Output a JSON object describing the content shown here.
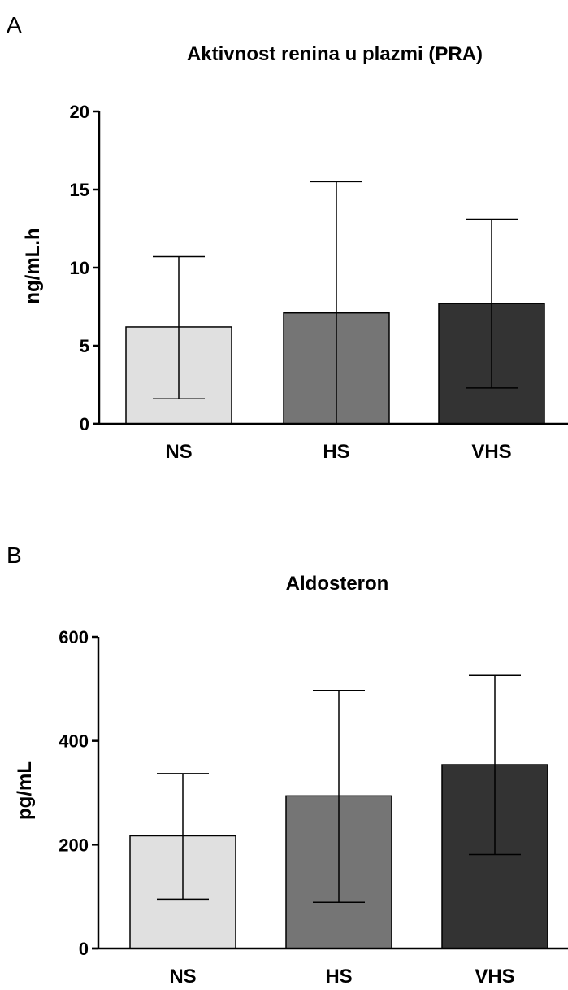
{
  "chart_data": [
    {
      "type": "bar",
      "panel": "A",
      "title": "Aktivnost renina u plazmi (PRA)",
      "xlabel": "",
      "ylabel": "ng/mL.h",
      "ylim": [
        0,
        20
      ],
      "yticks": [
        0,
        5,
        10,
        15,
        20
      ],
      "categories": [
        "NS",
        "HS",
        "VHS"
      ],
      "values": [
        6.2,
        7.1,
        7.7
      ],
      "error_upper": [
        10.7,
        15.5,
        13.1
      ],
      "error_lower": [
        1.6,
        0,
        2.3
      ],
      "bar_colors": [
        "#e0e0e0",
        "#757575",
        "#333333"
      ]
    },
    {
      "type": "bar",
      "panel": "B",
      "title": "Aldosteron",
      "xlabel": "",
      "ylabel": "pg/mL",
      "ylim": [
        0,
        600
      ],
      "yticks": [
        0,
        200,
        400,
        600
      ],
      "categories": [
        "NS",
        "HS",
        "VHS"
      ],
      "values": [
        217,
        294,
        354
      ],
      "error_upper": [
        337,
        497,
        526
      ],
      "error_lower": [
        95,
        89,
        181
      ],
      "bar_colors": [
        "#e0e0e0",
        "#757575",
        "#333333"
      ]
    }
  ]
}
